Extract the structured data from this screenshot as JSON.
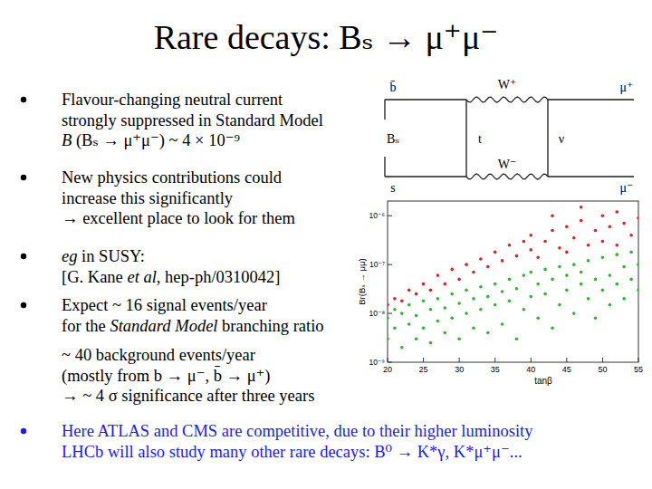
{
  "title": "Rare decays:  Bₛ → μ⁺μ⁻",
  "bullets": [
    {
      "color": "#000000",
      "lines": [
        [
          {
            "text": "Flavour-changing neutral current"
          }
        ],
        [
          {
            "text": "strongly suppressed in Standard Model"
          }
        ],
        [
          {
            "text": "B",
            "italic": true
          },
          {
            "text": " (Bₛ → μ⁺μ⁻) ~ 4 × 10⁻⁹"
          }
        ]
      ]
    },
    {
      "color": "#000000",
      "lines": [
        [
          {
            "text": "New physics contributions could"
          }
        ],
        [
          {
            "text": "increase this significantly"
          }
        ],
        [
          {
            "text": "→ excellent place to look for them"
          }
        ]
      ]
    },
    {
      "color": "#000000",
      "lines": [
        [
          {
            "text": "eg",
            "italic": true
          },
          {
            "text": " in SUSY:"
          }
        ],
        [
          {
            "text": "[G. Kane "
          },
          {
            "text": "et al",
            "italic": true
          },
          {
            "text": ", hep-ph/0310042]"
          }
        ]
      ]
    },
    {
      "color": "#000000",
      "lines": [
        [
          {
            "text": "Expect ~ 16 signal events/year"
          }
        ],
        [
          {
            "text": "for the "
          },
          {
            "text": "Standard Model",
            "italic": true
          },
          {
            "text": " branching ratio"
          }
        ]
      ],
      "continuation": [
        [
          {
            "text": "~ 40 background events/year"
          }
        ],
        [
          {
            "text": "(mostly from b → μ⁻, b̄ → μ⁺)"
          }
        ],
        [
          {
            "text": "→ ~ 4 σ significance after three years"
          }
        ]
      ]
    },
    {
      "color": "#1a1aff",
      "lines": [
        [
          {
            "text": "Here ATLAS and CMS are competitive, due to their higher luminosity"
          }
        ],
        [
          {
            "text": "LHCb will also study many other rare decays:  B⁰ → K*γ, K*μ⁺μ⁻..."
          }
        ]
      ]
    }
  ],
  "diagram": {
    "b_bar": "b̄",
    "w_plus": "W⁺",
    "mu_plus": "μ⁺",
    "meson": "Bₛ",
    "top": "t",
    "nu": "ν",
    "s": "s",
    "w_minus": "W⁻",
    "mu_minus": "μ⁻"
  },
  "chart_data": {
    "type": "scatter",
    "x_label": "tanβ",
    "y_label": "Br(Bₛ → μμ)",
    "log": "y",
    "xlim": [
      20,
      55
    ],
    "ylim": [
      1e-09,
      2e-06
    ],
    "xticks": [
      20,
      25,
      30,
      35,
      40,
      45,
      50,
      55
    ],
    "yticks": [
      {
        "value": 1e-09,
        "label": "10⁻⁹"
      },
      {
        "value": 1e-08,
        "label": "10⁻⁸"
      },
      {
        "value": 1e-07,
        "label": "10⁻⁷"
      },
      {
        "value": 1e-06,
        "label": "10⁻⁶"
      }
    ],
    "series": [
      {
        "color": "#2eb82e",
        "marker": "dot",
        "x": [
          20,
          20,
          21,
          21,
          22,
          22,
          23,
          23,
          24,
          24,
          25,
          25,
          26,
          26,
          27,
          27,
          28,
          28,
          29,
          29,
          30,
          30,
          31,
          31,
          32,
          32,
          33,
          33,
          34,
          34,
          35,
          35,
          36,
          36,
          37,
          37,
          38,
          38,
          39,
          39,
          40,
          40,
          41,
          41,
          42,
          42,
          43,
          43,
          44,
          44,
          45,
          45,
          46,
          46,
          47,
          47,
          48,
          48,
          49,
          49,
          50,
          50,
          51,
          51,
          52,
          52,
          53,
          53,
          54,
          54,
          55,
          55
        ],
        "values": [
          3e-09,
          8e-09,
          1.2e-08,
          5e-09,
          2e-09,
          1e-08,
          6e-09,
          1.5e-08,
          3e-09,
          9e-09,
          1.8e-08,
          5e-09,
          2.5e-09,
          1.2e-08,
          7e-09,
          2e-08,
          4e-09,
          1.3e-08,
          2.5e-08,
          8e-09,
          3e-09,
          1.6e-08,
          1e-08,
          3e-08,
          5e-09,
          2e-08,
          3.5e-08,
          1.2e-08,
          4e-09,
          2.2e-08,
          4e-08,
          1.5e-08,
          6e-09,
          2.8e-08,
          5e-08,
          1.8e-08,
          3e-09,
          3.2e-08,
          6e-08,
          1.2e-08,
          2.2e-08,
          7e-08,
          8e-09,
          4e-08,
          2.5e-08,
          8e-08,
          5e-09,
          5e-08,
          1.5e-08,
          9e-08,
          3e-08,
          6e-08,
          1e-08,
          1e-07,
          4e-08,
          7e-08,
          2e-08,
          1.2e-07,
          5e-08,
          8e-09,
          1.4e-07,
          3e-08,
          6e-08,
          1.5e-08,
          1.6e-07,
          4e-08,
          9e-08,
          2e-08,
          1.8e-07,
          5e-08,
          1e-07,
          3e-08
        ]
      },
      {
        "color": "#e02020",
        "marker": "dot",
        "x": [
          20,
          21,
          22,
          23,
          24,
          25,
          26,
          27,
          28,
          29,
          30,
          31,
          32,
          33,
          34,
          35,
          36,
          37,
          38,
          39,
          40,
          40,
          41,
          42,
          43,
          44,
          45,
          45,
          46,
          47,
          48,
          49,
          50,
          50,
          51,
          52,
          52,
          53,
          54,
          55,
          43,
          47
        ],
        "values": [
          1.5e-08,
          2e-08,
          1.8e-08,
          3e-08,
          2.5e-08,
          4e-08,
          3e-08,
          6e-08,
          4e-08,
          8e-08,
          5e-08,
          1e-07,
          7e-08,
          1.3e-07,
          9e-08,
          1.8e-07,
          1.2e-07,
          2.5e-07,
          1.5e-07,
          3e-07,
          2e-07,
          4e-07,
          1.4e-07,
          3e-07,
          5e-07,
          2.2e-07,
          6e-07,
          1.8e-07,
          3.5e-07,
          8e-07,
          2.5e-07,
          5e-07,
          1e-06,
          3e-07,
          6e-07,
          1.2e-06,
          2.5e-07,
          7e-07,
          4e-07,
          9e-07,
          1e-06,
          1.5e-06
        ]
      }
    ]
  }
}
